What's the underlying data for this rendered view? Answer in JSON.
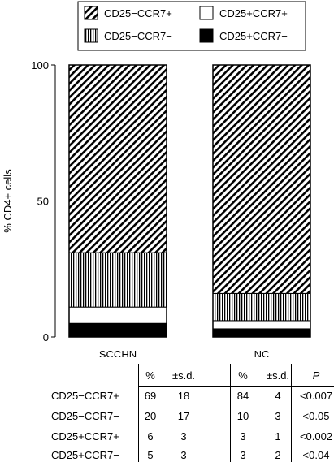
{
  "chart_data": {
    "type": "stacked-bar",
    "categories": [
      "SCCHN",
      "NC"
    ],
    "series": [
      {
        "name": "CD25+CCR7−",
        "pattern": "solid",
        "color": "#000000",
        "values": [
          5,
          3
        ]
      },
      {
        "name": "CD25+CCR7+",
        "pattern": "open",
        "color": "#ffffff",
        "values": [
          6,
          3
        ]
      },
      {
        "name": "CD25−CCR7−",
        "pattern": "vertical-stripes",
        "color": "#000000",
        "values": [
          20,
          10
        ]
      },
      {
        "name": "CD25−CCR7+",
        "pattern": "diagonal-stripes",
        "color": "#000000",
        "values": [
          69,
          84
        ]
      }
    ],
    "legend": {
      "placement": "top",
      "order": [
        "CD25−CCR7+",
        "CD25+CCR7+",
        "CD25−CCR7−",
        "CD25+CCR7−"
      ]
    },
    "xlabel": "",
    "ylabel": "% CD4+ cells",
    "ylim": [
      0,
      100
    ],
    "yticks": [
      "0",
      "50",
      "100"
    ],
    "grid": false
  },
  "stats_table": {
    "headers": [
      "%",
      "±s.d.",
      "%",
      "±s.d.",
      "P"
    ],
    "rows": [
      {
        "label": "CD25−CCR7+",
        "cells": [
          "69",
          "18",
          "84",
          "4",
          "<0.007"
        ]
      },
      {
        "label": "CD25−CCR7−",
        "cells": [
          "20",
          "17",
          "10",
          "3",
          "<0.05"
        ]
      },
      {
        "label": "CD25+CCR7+",
        "cells": [
          "6",
          "3",
          "3",
          "1",
          "<0.002"
        ]
      },
      {
        "label": "CD25+CCR7−",
        "cells": [
          "5",
          "3",
          "3",
          "2",
          "<0.04"
        ]
      }
    ]
  }
}
